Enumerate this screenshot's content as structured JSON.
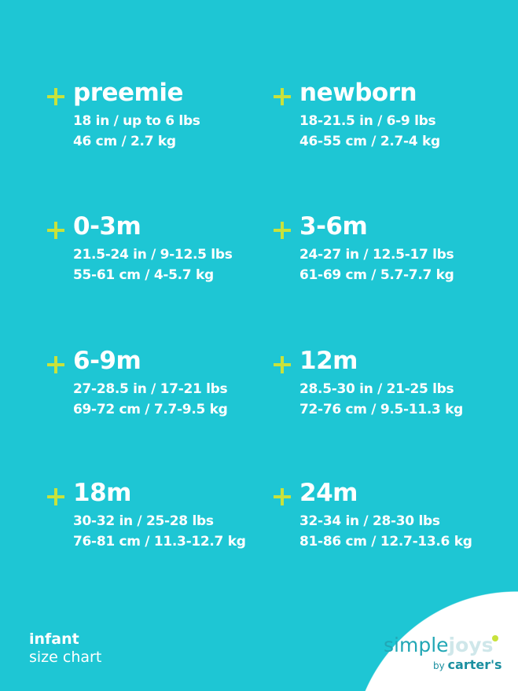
{
  "sizes": [
    {
      "label": "preemie",
      "imperial": "18 in / up to 6 lbs",
      "metric": "46 cm / 2.7 kg"
    },
    {
      "label": "newborn",
      "imperial": "18-21.5 in / 6-9 lbs",
      "metric": "46-55 cm / 2.7-4 kg"
    },
    {
      "label": "0-3m",
      "imperial": "21.5-24 in / 9-12.5 lbs",
      "metric": "55-61 cm / 4-5.7 kg"
    },
    {
      "label": "3-6m",
      "imperial": "24-27 in / 12.5-17 lbs",
      "metric": "61-69 cm / 5.7-7.7 kg"
    },
    {
      "label": "6-9m",
      "imperial": "27-28.5 in / 17-21 lbs",
      "metric": "69-72 cm / 7.7-9.5 kg"
    },
    {
      "label": "12m",
      "imperial": "28.5-30 in / 21-25 lbs",
      "metric": "72-76 cm / 9.5-11.3 kg"
    },
    {
      "label": "18m",
      "imperial": "30-32 in / 25-28 lbs",
      "metric": "76-81 cm / 11.3-12.7 kg"
    },
    {
      "label": "24m",
      "imperial": "32-34 in / 28-30 lbs",
      "metric": "81-86 cm / 12.7-13.6 kg"
    }
  ],
  "footer": {
    "line1": "infant",
    "line2": "size chart"
  },
  "logo": {
    "simple": "simple",
    "joys": "joys",
    "by": "by",
    "brand": "carter's"
  },
  "colors": {
    "background": "#1ec6d4",
    "accent": "#c8e23c",
    "text": "#ffffff"
  }
}
